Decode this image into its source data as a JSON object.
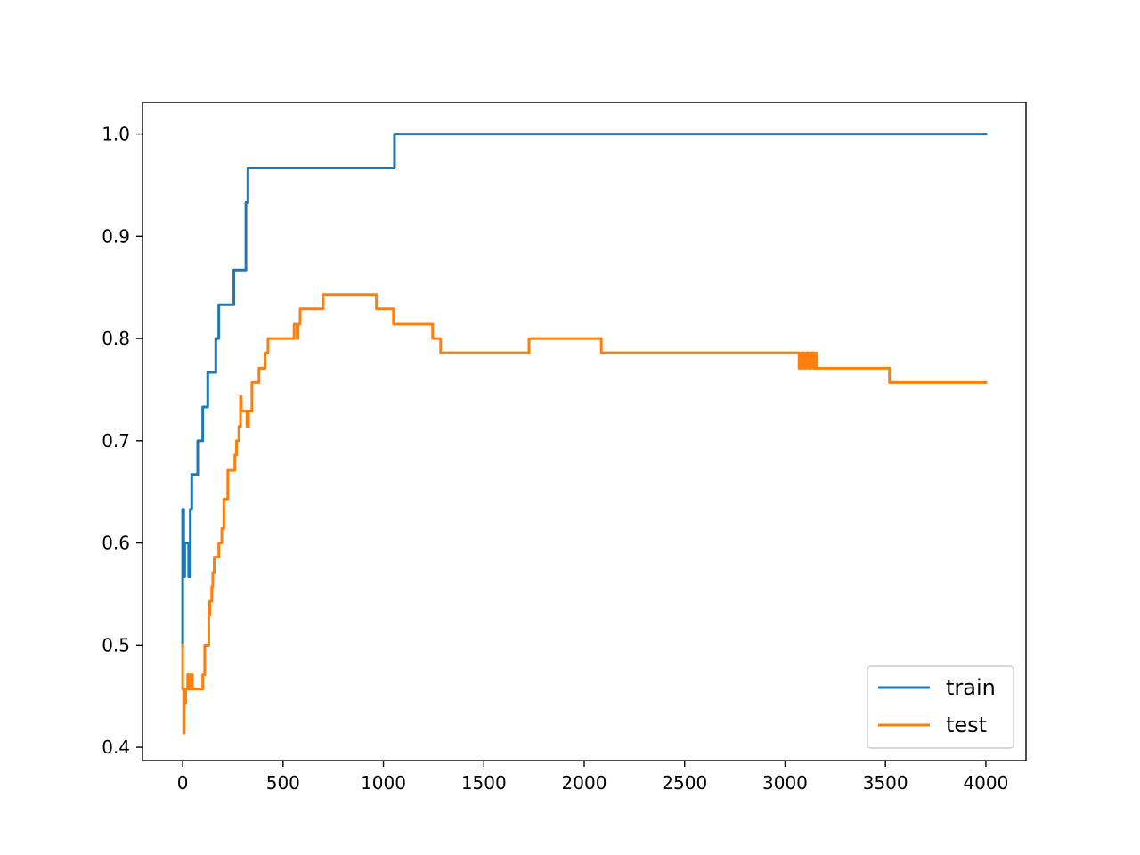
{
  "chart_data": {
    "type": "line",
    "title": "",
    "xlabel": "",
    "ylabel": "",
    "xlim": [
      -200,
      4200
    ],
    "ylim": [
      0.387,
      1.031
    ],
    "grid": false,
    "legend_position": "lower-right",
    "xticks": [
      0,
      500,
      1000,
      1500,
      2000,
      2500,
      3000,
      3500,
      4000
    ],
    "xtick_labels": [
      "0",
      "500",
      "1000",
      "1500",
      "2000",
      "2500",
      "3000",
      "3500",
      "4000"
    ],
    "yticks": [
      0.4,
      0.5,
      0.6,
      0.7,
      0.8,
      0.9,
      1.0
    ],
    "ytick_labels": [
      "0.4",
      "0.5",
      "0.6",
      "0.7",
      "0.8",
      "0.9",
      "1.0"
    ],
    "series": [
      {
        "name": "train",
        "color": "#1f77b4",
        "points": [
          [
            0,
            0.5
          ],
          [
            0,
            0.633
          ],
          [
            5,
            0.633
          ],
          [
            5,
            0.567
          ],
          [
            10,
            0.567
          ],
          [
            10,
            0.6
          ],
          [
            30,
            0.6
          ],
          [
            30,
            0.567
          ],
          [
            38,
            0.567
          ],
          [
            38,
            0.633
          ],
          [
            45,
            0.633
          ],
          [
            45,
            0.667
          ],
          [
            75,
            0.667
          ],
          [
            75,
            0.7
          ],
          [
            100,
            0.7
          ],
          [
            100,
            0.733
          ],
          [
            125,
            0.733
          ],
          [
            125,
            0.767
          ],
          [
            165,
            0.767
          ],
          [
            165,
            0.8
          ],
          [
            180,
            0.8
          ],
          [
            180,
            0.833
          ],
          [
            255,
            0.833
          ],
          [
            255,
            0.867
          ],
          [
            315,
            0.867
          ],
          [
            315,
            0.933
          ],
          [
            325,
            0.933
          ],
          [
            325,
            0.967
          ],
          [
            1055,
            0.967
          ],
          [
            1055,
            1.0
          ],
          [
            4000,
            1.0
          ]
        ]
      },
      {
        "name": "test",
        "color": "#ff7f0e",
        "points": [
          [
            0,
            0.5
          ],
          [
            0,
            0.457
          ],
          [
            5,
            0.457
          ],
          [
            5,
            0.414
          ],
          [
            8,
            0.414
          ],
          [
            8,
            0.443
          ],
          [
            15,
            0.443
          ],
          [
            15,
            0.457
          ],
          [
            25,
            0.457
          ],
          [
            25,
            0.471
          ],
          [
            33,
            0.471
          ],
          [
            33,
            0.457
          ],
          [
            40,
            0.457
          ],
          [
            40,
            0.471
          ],
          [
            48,
            0.471
          ],
          [
            48,
            0.457
          ],
          [
            100,
            0.457
          ],
          [
            100,
            0.471
          ],
          [
            110,
            0.471
          ],
          [
            110,
            0.5
          ],
          [
            130,
            0.5
          ],
          [
            130,
            0.529
          ],
          [
            135,
            0.529
          ],
          [
            135,
            0.543
          ],
          [
            145,
            0.543
          ],
          [
            145,
            0.557
          ],
          [
            150,
            0.557
          ],
          [
            150,
            0.571
          ],
          [
            157,
            0.571
          ],
          [
            157,
            0.586
          ],
          [
            180,
            0.586
          ],
          [
            180,
            0.6
          ],
          [
            195,
            0.6
          ],
          [
            195,
            0.614
          ],
          [
            205,
            0.614
          ],
          [
            205,
            0.643
          ],
          [
            225,
            0.643
          ],
          [
            225,
            0.671
          ],
          [
            260,
            0.671
          ],
          [
            260,
            0.686
          ],
          [
            268,
            0.686
          ],
          [
            268,
            0.7
          ],
          [
            280,
            0.7
          ],
          [
            280,
            0.714
          ],
          [
            288,
            0.714
          ],
          [
            288,
            0.743
          ],
          [
            292,
            0.743
          ],
          [
            292,
            0.729
          ],
          [
            320,
            0.729
          ],
          [
            320,
            0.714
          ],
          [
            328,
            0.714
          ],
          [
            328,
            0.729
          ],
          [
            345,
            0.729
          ],
          [
            345,
            0.757
          ],
          [
            380,
            0.757
          ],
          [
            380,
            0.771
          ],
          [
            410,
            0.771
          ],
          [
            410,
            0.786
          ],
          [
            425,
            0.786
          ],
          [
            425,
            0.8
          ],
          [
            555,
            0.8
          ],
          [
            555,
            0.814
          ],
          [
            570,
            0.814
          ],
          [
            570,
            0.8
          ],
          [
            575,
            0.8
          ],
          [
            575,
            0.814
          ],
          [
            585,
            0.814
          ],
          [
            585,
            0.829
          ],
          [
            700,
            0.829
          ],
          [
            700,
            0.843
          ],
          [
            965,
            0.843
          ],
          [
            965,
            0.829
          ],
          [
            1050,
            0.829
          ],
          [
            1050,
            0.814
          ],
          [
            1245,
            0.814
          ],
          [
            1245,
            0.8
          ],
          [
            1285,
            0.8
          ],
          [
            1285,
            0.786
          ],
          [
            1725,
            0.786
          ],
          [
            1725,
            0.8
          ],
          [
            2085,
            0.8
          ],
          [
            2085,
            0.786
          ],
          [
            3070,
            0.786
          ],
          [
            3070,
            0.771
          ],
          [
            3082,
            0.771
          ],
          [
            3082,
            0.786
          ],
          [
            3094,
            0.786
          ],
          [
            3094,
            0.771
          ],
          [
            3106,
            0.771
          ],
          [
            3106,
            0.786
          ],
          [
            3118,
            0.786
          ],
          [
            3118,
            0.771
          ],
          [
            3130,
            0.771
          ],
          [
            3130,
            0.786
          ],
          [
            3142,
            0.786
          ],
          [
            3142,
            0.771
          ],
          [
            3155,
            0.771
          ],
          [
            3155,
            0.786
          ],
          [
            3158,
            0.786
          ],
          [
            3158,
            0.771
          ],
          [
            3520,
            0.771
          ],
          [
            3520,
            0.757
          ],
          [
            4000,
            0.757
          ]
        ]
      }
    ]
  }
}
